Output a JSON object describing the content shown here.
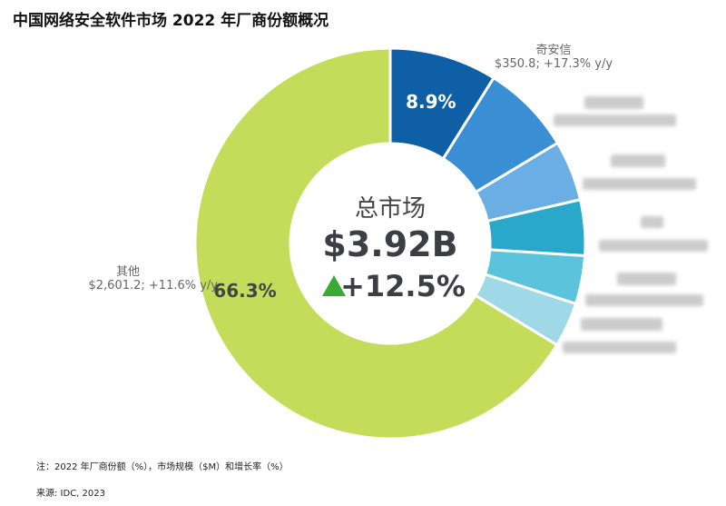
{
  "title": "中国网络安全软件市场 2022 年厂商份额概况",
  "chart_data": {
    "type": "pie",
    "donut": true,
    "center": {
      "label": "总市场",
      "value": "$3.92B",
      "growth": "+12.5%",
      "growth_icon": "triangle-up-icon",
      "growth_color": "#3aaa35"
    },
    "slices": [
      {
        "name": "奇安信",
        "share": 8.9,
        "share_label": "8.9%",
        "detail": "$350.8; +17.3% y/y",
        "color": "#0f5fa6"
      },
      {
        "name": "",
        "share": 7.5,
        "color": "#3a8fd4"
      },
      {
        "name": "",
        "share": 5.0,
        "color": "#6aaee3"
      },
      {
        "name": "",
        "share": 4.6,
        "color": "#2aa8c9"
      },
      {
        "name": "",
        "share": 4.0,
        "color": "#5cc3dc"
      },
      {
        "name": "",
        "share": 3.7,
        "color": "#9fd8e6"
      },
      {
        "name": "其他",
        "share": 66.3,
        "share_label": "66.3%",
        "detail": "$2,601.2; +11.6% y/y",
        "color": "#c5dc5a"
      }
    ]
  },
  "notes": {
    "note": "注：2022 年厂商份额（%），市场规模（$M）和增长率（%）",
    "source": "来源: IDC, 2023"
  }
}
